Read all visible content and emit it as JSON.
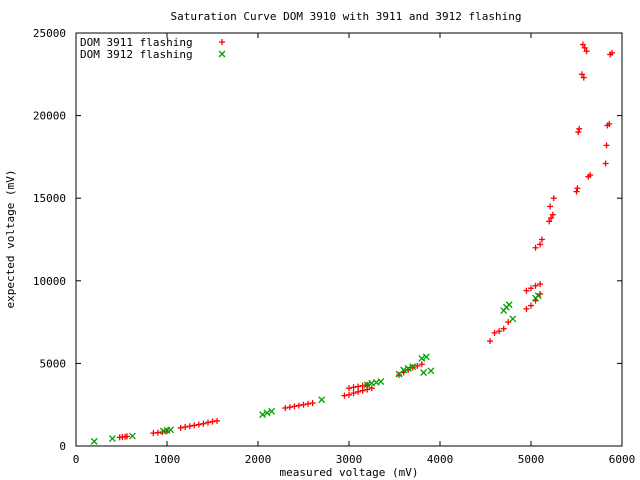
{
  "chart_data": {
    "type": "scatter",
    "title": "Saturation Curve DOM 3910 with 3911 and 3912 flashing",
    "xlabel": "measured voltage (mV)",
    "ylabel": "expected voltage (mV)",
    "xlim": [
      0,
      6000
    ],
    "ylim": [
      0,
      25000
    ],
    "xticks": [
      0,
      1000,
      2000,
      3000,
      4000,
      5000,
      6000
    ],
    "yticks": [
      0,
      5000,
      10000,
      15000,
      20000,
      25000
    ],
    "grid": false,
    "legend_position": "top-left",
    "series": [
      {
        "name": "DOM 3911 flashing",
        "marker": "+",
        "color": "#ff0000",
        "points": [
          [
            480,
            520
          ],
          [
            510,
            540
          ],
          [
            540,
            560
          ],
          [
            560,
            580
          ],
          [
            850,
            780
          ],
          [
            900,
            810
          ],
          [
            950,
            850
          ],
          [
            1000,
            900
          ],
          [
            1150,
            1100
          ],
          [
            1200,
            1150
          ],
          [
            1250,
            1200
          ],
          [
            1300,
            1250
          ],
          [
            1350,
            1300
          ],
          [
            1400,
            1350
          ],
          [
            1450,
            1420
          ],
          [
            1500,
            1480
          ],
          [
            1550,
            1520
          ],
          [
            2300,
            2300
          ],
          [
            2350,
            2350
          ],
          [
            2400,
            2400
          ],
          [
            2450,
            2450
          ],
          [
            2500,
            2500
          ],
          [
            2550,
            2550
          ],
          [
            2600,
            2600
          ],
          [
            2950,
            3050
          ],
          [
            3000,
            3100
          ],
          [
            3050,
            3200
          ],
          [
            3100,
            3280
          ],
          [
            3150,
            3350
          ],
          [
            3200,
            3420
          ],
          [
            3250,
            3500
          ],
          [
            3000,
            3500
          ],
          [
            3050,
            3550
          ],
          [
            3100,
            3600
          ],
          [
            3150,
            3650
          ],
          [
            3200,
            3700
          ],
          [
            3550,
            4300
          ],
          [
            3600,
            4450
          ],
          [
            3650,
            4600
          ],
          [
            3700,
            4750
          ],
          [
            3750,
            4850
          ],
          [
            3800,
            4950
          ],
          [
            4550,
            6350
          ],
          [
            4600,
            6850
          ],
          [
            4650,
            6950
          ],
          [
            4700,
            7100
          ],
          [
            4750,
            7500
          ],
          [
            4950,
            8300
          ],
          [
            5000,
            8500
          ],
          [
            5050,
            8800
          ],
          [
            5100,
            9200
          ],
          [
            4950,
            9400
          ],
          [
            5000,
            9550
          ],
          [
            5050,
            9700
          ],
          [
            5100,
            9800
          ],
          [
            5050,
            12000
          ],
          [
            5100,
            12200
          ],
          [
            5120,
            12500
          ],
          [
            5200,
            13600
          ],
          [
            5220,
            13800
          ],
          [
            5240,
            14000
          ],
          [
            5210,
            14500
          ],
          [
            5250,
            15000
          ],
          [
            5500,
            15400
          ],
          [
            5510,
            15600
          ],
          [
            5520,
            19000
          ],
          [
            5530,
            19200
          ],
          [
            5560,
            22500
          ],
          [
            5580,
            22300
          ],
          [
            5570,
            24300
          ],
          [
            5590,
            24100
          ],
          [
            5610,
            23900
          ],
          [
            5630,
            16300
          ],
          [
            5650,
            16400
          ],
          [
            5820,
            17100
          ],
          [
            5830,
            18200
          ],
          [
            5840,
            19400
          ],
          [
            5860,
            19500
          ],
          [
            5870,
            23700
          ],
          [
            5890,
            23800
          ]
        ]
      },
      {
        "name": "DOM 3912 flashing",
        "marker": "x",
        "color": "#00a000",
        "points": [
          [
            200,
            280
          ],
          [
            400,
            450
          ],
          [
            620,
            600
          ],
          [
            960,
            900
          ],
          [
            1000,
            950
          ],
          [
            1040,
            980
          ],
          [
            2050,
            1900
          ],
          [
            2100,
            2000
          ],
          [
            2150,
            2100
          ],
          [
            2700,
            2800
          ],
          [
            3200,
            3700
          ],
          [
            3250,
            3800
          ],
          [
            3300,
            3850
          ],
          [
            3350,
            3900
          ],
          [
            3550,
            4350
          ],
          [
            3600,
            4600
          ],
          [
            3650,
            4700
          ],
          [
            3700,
            4800
          ],
          [
            3800,
            5300
          ],
          [
            3850,
            5400
          ],
          [
            3820,
            4450
          ],
          [
            3900,
            4550
          ],
          [
            4700,
            8200
          ],
          [
            4730,
            8400
          ],
          [
            4760,
            8550
          ],
          [
            4800,
            7700
          ],
          [
            5050,
            8950
          ],
          [
            5080,
            9100
          ]
        ]
      }
    ]
  }
}
